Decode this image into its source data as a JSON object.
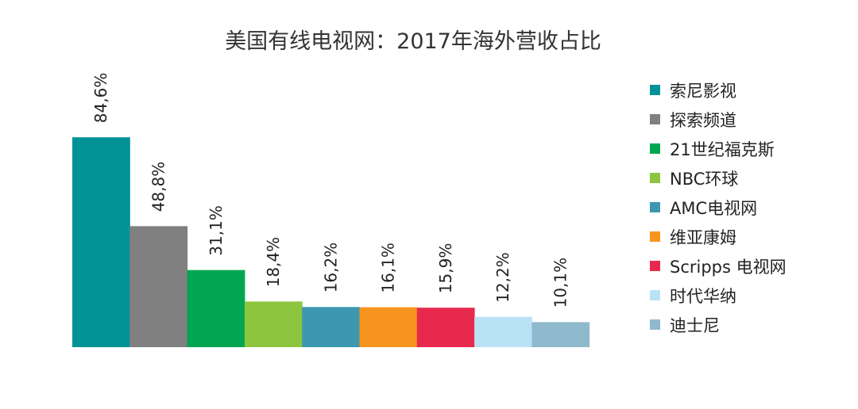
{
  "chart_data": {
    "type": "bar",
    "title": "美国有线电视网：2017年海外营收占比",
    "categories": [
      "索尼影视",
      "探索频道",
      "21世纪福克斯",
      "NBC环球",
      "AMC电视网",
      "维亚康姆",
      "Scripps 电视网",
      "时代华纳",
      "迪士尼"
    ],
    "values": [
      84.6,
      48.8,
      31.1,
      18.4,
      16.2,
      16.1,
      15.9,
      12.2,
      10.1
    ],
    "data_labels": [
      "84,6%",
      "48,8%",
      "31,1%",
      "18,4%",
      "16,2%",
      "16,1%",
      "15,9%",
      "12,2%",
      "10,1%"
    ],
    "colors": [
      "#009296",
      "#808080",
      "#00a651",
      "#8cc63f",
      "#3d97b0",
      "#f7941d",
      "#e8294e",
      "#b9e2f5",
      "#8fb9cc"
    ],
    "xlabel": "",
    "ylabel": "",
    "ylim": [
      0,
      100
    ],
    "grid": false,
    "legend_position": "right"
  }
}
